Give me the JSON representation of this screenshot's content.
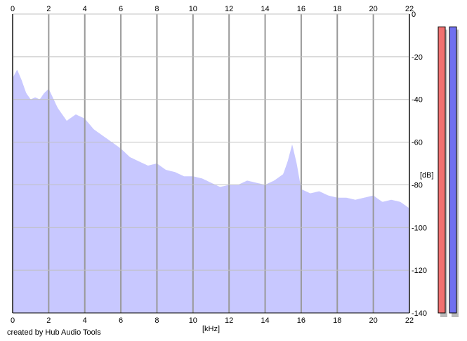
{
  "app": {
    "credit": "created by Hub Audio Tools"
  },
  "chart_data": {
    "type": "area",
    "xlabel": "[kHz]",
    "ylabel": "[dB]",
    "xlim": [
      0,
      22
    ],
    "ylim": [
      -140,
      0
    ],
    "x_ticks": [
      0,
      2,
      4,
      6,
      8,
      10,
      12,
      14,
      16,
      18,
      20,
      22
    ],
    "y_ticks": [
      0,
      -20,
      -40,
      -60,
      -80,
      -100,
      -120,
      -140
    ],
    "grid": true,
    "series": [
      {
        "color": "#ff0000",
        "x": [
          0,
          0.25,
          0.5,
          0.75,
          1,
          1.25,
          1.5,
          1.75,
          2,
          2.5,
          3,
          3.5,
          4,
          4.5,
          5,
          5.5,
          6,
          6.5,
          7,
          7.5,
          8,
          8.5,
          9,
          9.5,
          10,
          10.5,
          11,
          11.5,
          12,
          12.5,
          13,
          13.5,
          14,
          14.5,
          15,
          15.25,
          15.5,
          15.75,
          16,
          16.5,
          17,
          17.5,
          18,
          18.5,
          19,
          19.5,
          20,
          20.5,
          21,
          21.5,
          22
        ],
        "values": [
          -26,
          -22,
          -27,
          -33,
          -36,
          -35,
          -36,
          -33,
          -31,
          -40,
          -46,
          -43,
          -45,
          -50,
          -53,
          -56,
          -59,
          -63,
          -65,
          -67,
          -66,
          -69,
          -70,
          -72,
          -72,
          -73,
          -75,
          -77,
          -76,
          -76,
          -74,
          -75,
          -76,
          -74,
          -71,
          -65,
          -57,
          -66,
          -78,
          -80,
          -79,
          -81,
          -82,
          -82,
          -83,
          -82,
          -81,
          -84,
          -83,
          -84,
          -87
        ]
      },
      {
        "color": "#0000ff",
        "x": [
          0,
          0.25,
          0.5,
          0.75,
          1,
          1.25,
          1.5,
          1.75,
          2,
          2.5,
          3,
          3.5,
          4,
          4.5,
          5,
          5.5,
          6,
          6.5,
          7,
          7.5,
          8,
          8.5,
          9,
          9.5,
          10,
          10.5,
          11,
          11.5,
          12,
          12.5,
          13,
          13.5,
          14,
          14.5,
          15,
          15.25,
          15.5,
          15.75,
          16,
          16.5,
          17,
          17.5,
          18,
          18.5,
          19,
          19.5,
          20,
          20.5,
          21,
          21.5,
          22
        ],
        "values": [
          -27,
          -25,
          -30,
          -34,
          -37,
          -36,
          -37,
          -34,
          -32,
          -41,
          -46,
          -44,
          -46,
          -51,
          -54,
          -57,
          -60,
          -64,
          -66,
          -68,
          -67,
          -70,
          -71,
          -73,
          -73,
          -74,
          -76,
          -77,
          -77,
          -77,
          -76,
          -76,
          -77,
          -75,
          -73,
          -70,
          -66,
          -72,
          -80,
          -81,
          -80,
          -82,
          -83,
          -83,
          -84,
          -83,
          -82,
          -84,
          -84,
          -85,
          -88
        ]
      }
    ],
    "meters": [
      {
        "color": "#f07070",
        "level_db": -6
      },
      {
        "color": "#7070f0",
        "level_db": -6
      }
    ]
  }
}
